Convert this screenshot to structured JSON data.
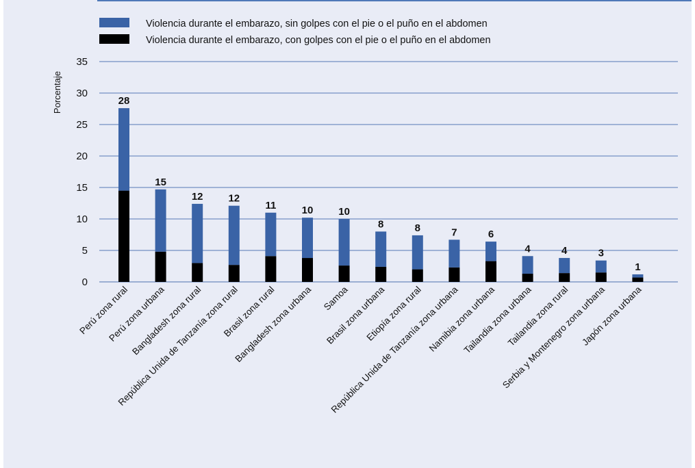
{
  "chart_data": {
    "type": "bar",
    "stacked": true,
    "ylabel": "Porcentaje",
    "ylim": [
      0,
      35
    ],
    "yticks": [
      0,
      5,
      10,
      15,
      20,
      25,
      30,
      35
    ],
    "grid": true,
    "legend_position": "top",
    "categories": [
      "Perú zona rural",
      "Perú zona urbana",
      "Bangladesh zona rural",
      "República Unida de Tanzanía zona rural",
      "Brasil zona rural",
      "Bangladesh zona urbana",
      "Samoa",
      "Brasil zona urbana",
      "Etiopía zona rural",
      "República Unida de Tanzanía zona urbana",
      "Namibia zona urbana",
      "Tailandia zona urbana",
      "Tailandia zona rural",
      "Serbia y Montenegro zona urbana",
      "Japón zona urbana"
    ],
    "series": [
      {
        "name": "Violencia durante el embarazo, con golpes con el pie o el puño en el abdomen",
        "color": "#000000",
        "values": [
          14.5,
          4.8,
          3.0,
          2.7,
          4.1,
          3.8,
          2.6,
          2.4,
          2.0,
          2.3,
          3.3,
          1.3,
          1.4,
          1.5,
          0.7
        ]
      },
      {
        "name": "Violencia durante el embarazo, sin golpes con el pie o el puño en el abdomen",
        "color": "#3a63a6",
        "values": [
          13.1,
          9.9,
          9.4,
          9.4,
          6.9,
          6.4,
          7.4,
          5.6,
          5.4,
          4.4,
          3.1,
          2.8,
          2.4,
          1.9,
          0.5
        ]
      }
    ],
    "totals": [
      "28",
      "15",
      "12",
      "12",
      "11",
      "10",
      "10",
      "8",
      "8",
      "7",
      "6",
      "4",
      "4",
      "3",
      "1"
    ]
  }
}
